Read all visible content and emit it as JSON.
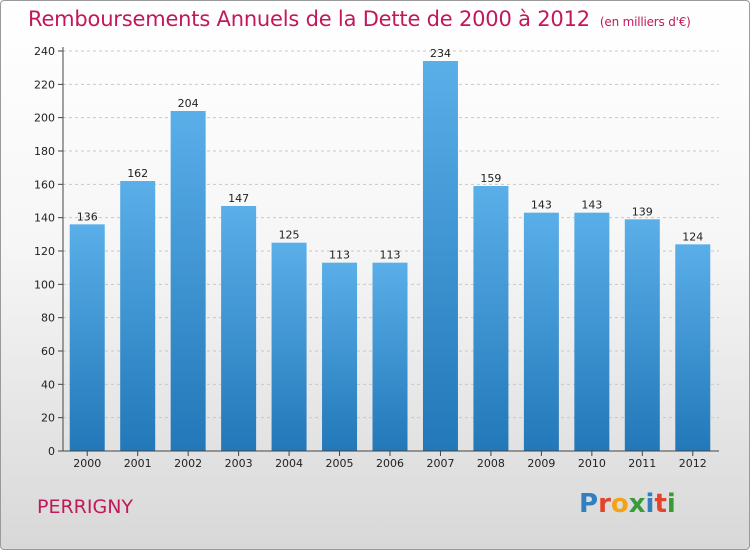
{
  "header": {
    "title": "Remboursements Annuels de la Dette de 2000 à 2012",
    "unit": "(en milliers d'€)"
  },
  "footer": {
    "commune": "PERRIGNY",
    "logo": "Proxiti"
  },
  "colors": {
    "title": "#c2185b",
    "bar_top": "#5aafe9",
    "bar_bottom": "#2278b8"
  },
  "chart_data": {
    "type": "bar",
    "categories": [
      "2000",
      "2001",
      "2002",
      "2003",
      "2004",
      "2005",
      "2006",
      "2007",
      "2008",
      "2009",
      "2010",
      "2011",
      "2012"
    ],
    "values": [
      136,
      162,
      204,
      147,
      125,
      113,
      113,
      234,
      159,
      143,
      143,
      139,
      124
    ],
    "title": "Remboursements Annuels de la Dette de 2000 à 2012",
    "ylim": [
      0,
      240
    ],
    "yticks": [
      0,
      20,
      40,
      60,
      80,
      100,
      120,
      140,
      160,
      180,
      200,
      220,
      240
    ],
    "grid": true,
    "data_labels": [
      "136",
      "162",
      "204",
      "147",
      "125",
      "113",
      "113",
      "234",
      "159",
      "143",
      "143",
      "139",
      "124"
    ]
  }
}
